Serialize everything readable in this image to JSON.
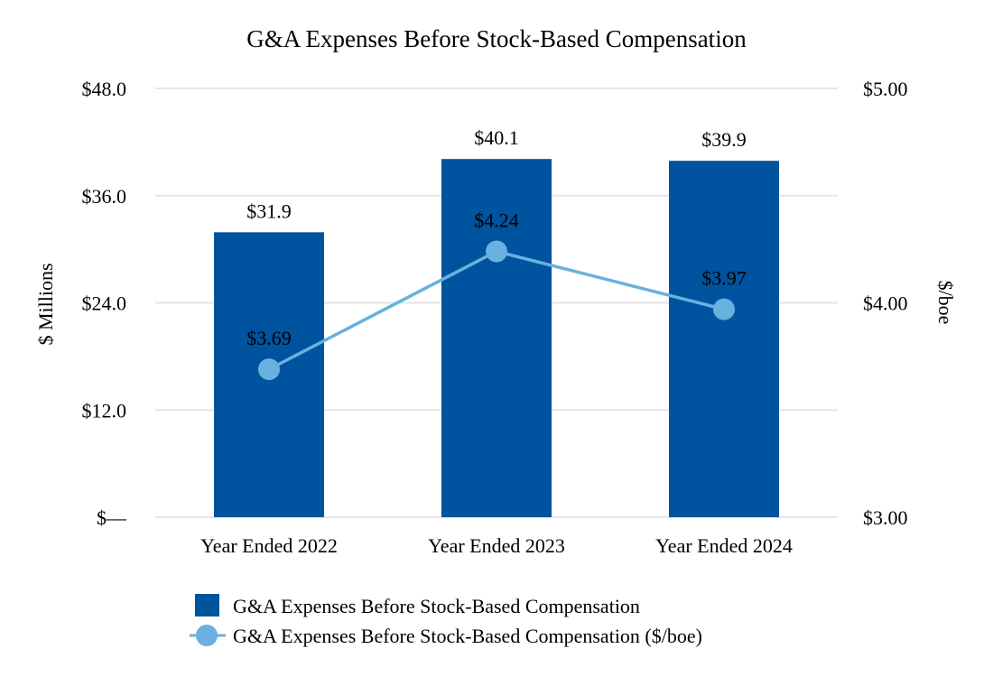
{
  "colors": {
    "bar": "#00539e",
    "line": "#68b1e0",
    "grid": "#e6e6e6",
    "text": "#000000",
    "point_label": "#ffffff"
  },
  "chart_data": {
    "type": "bar",
    "title": "G&A Expenses Before Stock-Based Compensation",
    "ylabel": "$ Millions",
    "y2label": "$/boe",
    "categories": [
      "Year Ended 2022",
      "Year Ended 2023",
      "Year Ended 2024"
    ],
    "ylim": [
      0,
      48
    ],
    "y2lim": [
      3,
      5
    ],
    "yticks": [
      "$—",
      "$12.0",
      "$24.0",
      "$36.0",
      "$48.0"
    ],
    "y2ticks": [
      "$3.00",
      "$4.00",
      "$5.00"
    ],
    "grid": true,
    "legend_position": "bottom",
    "series": [
      {
        "name": "G&A Expenses Before Stock-Based Compensation",
        "type": "bar",
        "axis": "left",
        "values": [
          31.9,
          40.1,
          39.9
        ],
        "labels": [
          "$31.9",
          "$40.1",
          "$39.9"
        ]
      },
      {
        "name": "G&A Expenses Before Stock-Based Compensation ($/boe)",
        "type": "line",
        "axis": "right",
        "values": [
          3.69,
          4.24,
          3.97
        ],
        "labels": [
          "$3.69",
          "$4.24",
          "$3.97"
        ]
      }
    ]
  }
}
